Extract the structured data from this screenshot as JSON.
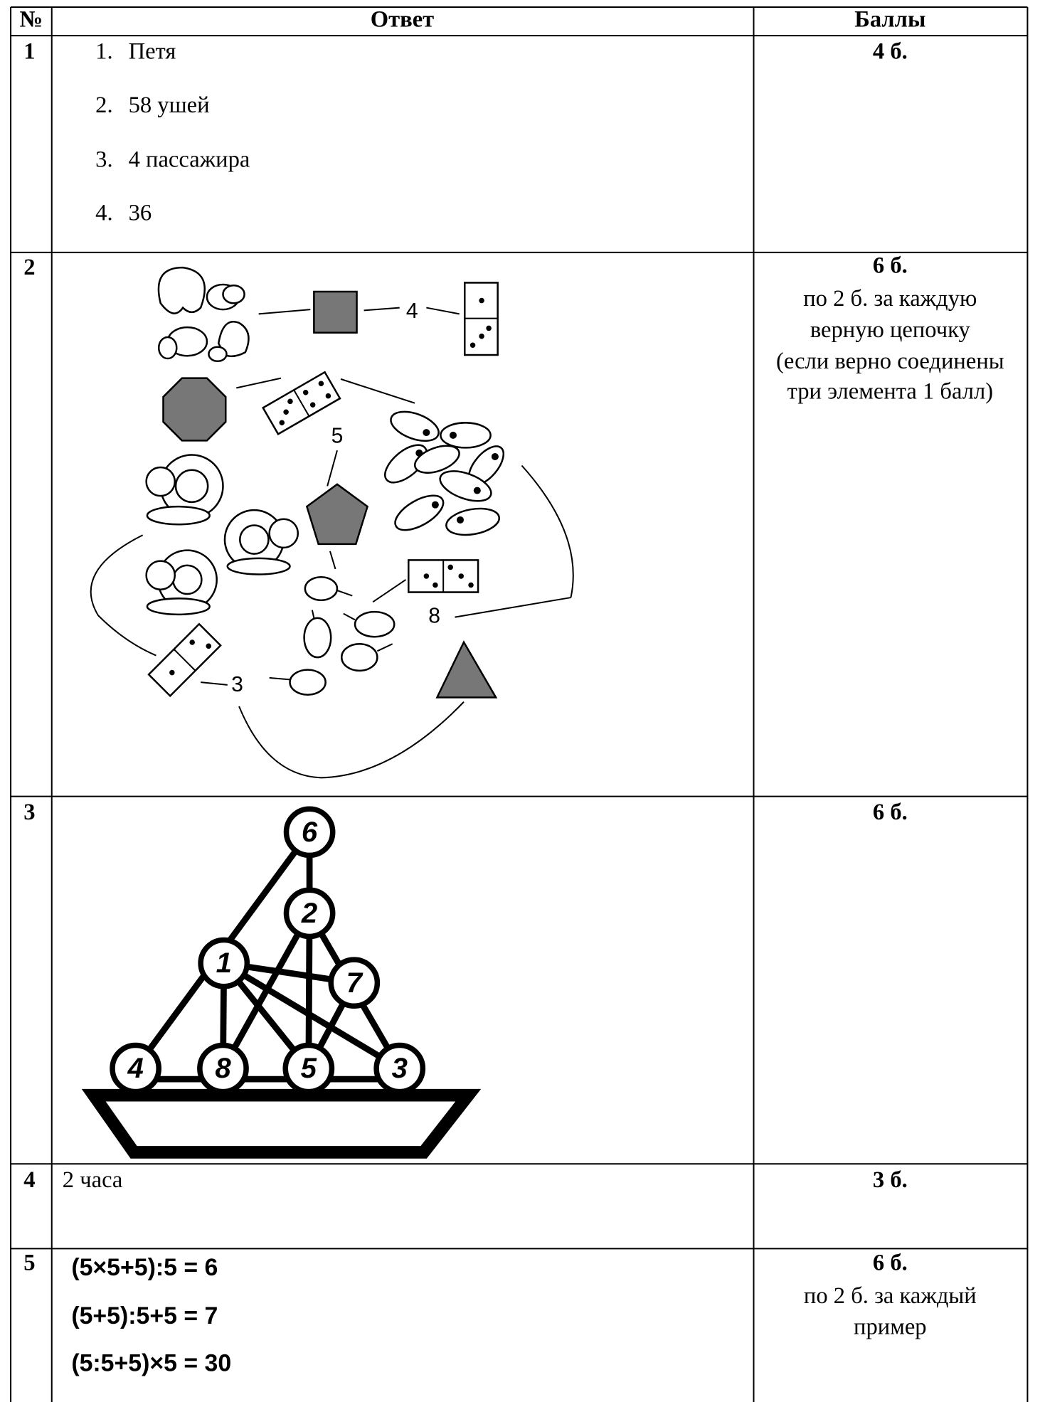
{
  "table": {
    "header": [
      "№",
      "Ответ",
      "Баллы"
    ],
    "rows": [
      {
        "number": "1",
        "answers": [
          "Петя",
          "58 ушей",
          "4 пассажира",
          "36"
        ],
        "points": "4 б."
      },
      {
        "number": "2",
        "labels": [
          "4",
          "5",
          "8",
          "3"
        ],
        "points": "6 б.",
        "note": [
          "по 2 б. за каждую",
          "верную цепочку",
          "(если верно соединены",
          "три элемента 1 балл)"
        ]
      },
      {
        "number": "3",
        "nodes": [
          "6",
          "2",
          "1",
          "7",
          "4",
          "8",
          "5",
          "3"
        ],
        "points": "6 б."
      },
      {
        "number": "4",
        "answer": "2 часа",
        "points": "3 б."
      },
      {
        "number": "5",
        "equations": [
          "(5×5+5):5 = 6",
          "(5+5):5+5 = 7",
          "(5:5+5)×5 = 30"
        ],
        "points": "6 б.",
        "note": [
          "по 2 б. за каждый",
          "пример"
        ]
      }
    ]
  }
}
